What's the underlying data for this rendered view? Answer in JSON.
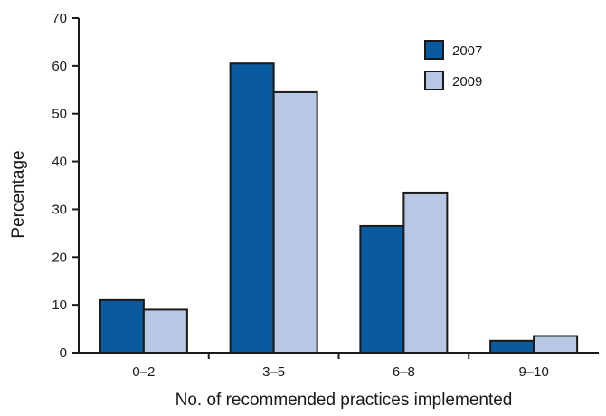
{
  "chart_data": {
    "type": "bar",
    "categories": [
      "0–2",
      "3–5",
      "6–8",
      "9–10"
    ],
    "series": [
      {
        "name": "2007",
        "values": [
          11,
          60.5,
          26.5,
          2.5
        ],
        "color": "#0a5aa0"
      },
      {
        "name": "2009",
        "values": [
          9,
          54.5,
          33.5,
          3.5
        ],
        "color": "#b8c8e4"
      }
    ],
    "xlabel": "No. of recommended practices implemented",
    "ylabel": "Percentage",
    "ylim": [
      0,
      70
    ],
    "yticks": [
      0,
      10,
      20,
      30,
      40,
      50,
      60,
      70
    ],
    "grid": false,
    "legend_position": "top-right",
    "colors": {
      "axis": "#1a1a1a",
      "bar_outline": "#1a1a1a"
    }
  }
}
